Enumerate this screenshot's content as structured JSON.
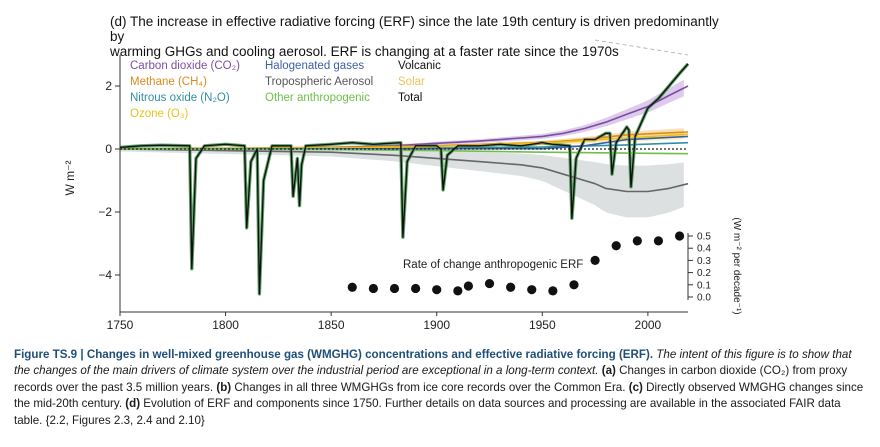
{
  "panel": {
    "title_line1": "(d) The increase in effective radiative forcing (ERF) since the late 19th century is driven predominantly by",
    "title_line2": "warming GHGs and cooling aerosol. ERF is changing at a faster rate since the 1970s"
  },
  "chart_data": {
    "type": "line",
    "ylabel": "W m⁻²",
    "xlim": [
      1750,
      2019
    ],
    "ylim": [
      -5,
      3
    ],
    "x_ticks": [
      1750,
      1800,
      1850,
      1900,
      1950,
      2000
    ],
    "y_ticks": [
      2,
      0,
      -2,
      -4
    ],
    "legend": {
      "placement": "top-left",
      "col1": [
        {
          "label": "Carbon dioxide (CO₂)",
          "color": "#7b4fa0"
        },
        {
          "label": "Methane (CH₄)",
          "color": "#e08a1e"
        },
        {
          "label": "Nitrous oxide (N₂O)",
          "color": "#2e8fa8"
        },
        {
          "label": "Ozone (O₃)",
          "color": "#e8c21a"
        }
      ],
      "col2": [
        {
          "label": "Halogenated gases",
          "color": "#3b5fa8"
        },
        {
          "label": "Tropospheric Aerosol",
          "color": "#555555"
        },
        {
          "label": "Other anthropogenic",
          "color": "#6fbf4a"
        }
      ],
      "col3": [
        {
          "label": "Volcanic",
          "color": "#111111"
        },
        {
          "label": "Solar",
          "color": "#f0c060"
        },
        {
          "label": "Total",
          "color": "#111111"
        }
      ]
    },
    "series": [
      {
        "name": "Carbon dioxide (CO₂)",
        "color": "#7b4fa0",
        "x": [
          1750,
          1800,
          1850,
          1880,
          1900,
          1920,
          1940,
          1950,
          1960,
          1970,
          1980,
          1990,
          2000,
          2010,
          2019
        ],
        "y": [
          0.0,
          0.02,
          0.05,
          0.1,
          0.18,
          0.25,
          0.35,
          0.4,
          0.5,
          0.65,
          0.85,
          1.1,
          1.35,
          1.7,
          2.0
        ]
      },
      {
        "name": "Methane (CH₄)",
        "color": "#e08a1e",
        "x": [
          1750,
          1850,
          1900,
          1950,
          1970,
          1990,
          2019
        ],
        "y": [
          0.0,
          0.04,
          0.1,
          0.2,
          0.3,
          0.45,
          0.54
        ]
      },
      {
        "name": "Nitrous oxide (N₂O)",
        "color": "#2e8fa8",
        "x": [
          1750,
          1850,
          1900,
          1950,
          1990,
          2019
        ],
        "y": [
          0.0,
          0.01,
          0.03,
          0.06,
          0.13,
          0.2
        ]
      },
      {
        "name": "Ozone (O₃)",
        "color": "#e8c21a",
        "x": [
          1750,
          1850,
          1900,
          1950,
          1990,
          2019
        ],
        "y": [
          0.0,
          0.03,
          0.08,
          0.18,
          0.35,
          0.47
        ]
      },
      {
        "name": "Halogenated gases",
        "color": "#3b5fa8",
        "x": [
          1750,
          1950,
          1970,
          1990,
          2019
        ],
        "y": [
          0.0,
          0.01,
          0.1,
          0.3,
          0.4
        ]
      },
      {
        "name": "Tropospheric Aerosol",
        "color": "#666666",
        "x": [
          1750,
          1850,
          1880,
          1900,
          1920,
          1940,
          1950,
          1960,
          1970,
          1975,
          1980,
          1990,
          2000,
          2010,
          2019
        ],
        "y": [
          0.0,
          -0.1,
          -0.2,
          -0.3,
          -0.4,
          -0.5,
          -0.6,
          -0.8,
          -1.0,
          -1.1,
          -1.25,
          -1.35,
          -1.35,
          -1.25,
          -1.1
        ]
      },
      {
        "name": "Other anthropogenic",
        "color": "#6fbf4a",
        "x": [
          1750,
          1850,
          1900,
          1950,
          2019
        ],
        "y": [
          0.0,
          -0.02,
          -0.05,
          -0.1,
          -0.15
        ]
      },
      {
        "name": "Total",
        "color": "#111111",
        "x": [
          1750,
          1760,
          1770,
          1783,
          1784,
          1786,
          1790,
          1800,
          1809,
          1810,
          1812,
          1815,
          1816,
          1818,
          1822,
          1831,
          1832,
          1834,
          1835,
          1836,
          1838,
          1850,
          1860,
          1870,
          1883,
          1884,
          1886,
          1890,
          1900,
          1902,
          1903,
          1905,
          1910,
          1920,
          1930,
          1940,
          1950,
          1955,
          1963,
          1964,
          1966,
          1970,
          1975,
          1980,
          1982,
          1983,
          1985,
          1990,
          1991,
          1992,
          1994,
          2000,
          2005,
          2010,
          2015,
          2019
        ],
        "y": [
          0.05,
          0.1,
          0.12,
          0.1,
          -3.8,
          -0.3,
          0.1,
          0.15,
          0.1,
          -2.5,
          -0.4,
          0.0,
          -4.6,
          -1.0,
          0.1,
          0.1,
          -1.5,
          -0.3,
          -1.8,
          -0.5,
          0.1,
          0.15,
          0.2,
          0.15,
          0.2,
          -2.8,
          -0.4,
          0.1,
          0.1,
          0.0,
          -1.3,
          -0.2,
          0.1,
          0.1,
          0.15,
          0.1,
          0.2,
          0.15,
          0.1,
          -2.2,
          -0.3,
          0.3,
          0.3,
          0.5,
          0.5,
          -0.8,
          0.2,
          0.7,
          0.6,
          -1.2,
          0.4,
          1.3,
          1.6,
          2.0,
          2.4,
          2.7
        ]
      }
    ],
    "rate_axis": {
      "label": "(W m⁻² per decade⁻¹)",
      "ticks": [
        "0.5",
        "0.4",
        "0.3",
        "0.2",
        "0.1",
        "0.0"
      ],
      "range": [
        0.0,
        0.5
      ]
    },
    "rate_series": {
      "label": "Rate of change anthropogenic ERF",
      "x": [
        1860,
        1870,
        1880,
        1890,
        1900,
        1910,
        1915,
        1925,
        1935,
        1945,
        1955,
        1965,
        1975,
        1985,
        1995,
        2005,
        2015
      ],
      "y": [
        0.08,
        0.07,
        0.07,
        0.07,
        0.06,
        0.05,
        0.09,
        0.11,
        0.08,
        0.06,
        0.05,
        0.1,
        0.3,
        0.42,
        0.46,
        0.46,
        0.5
      ]
    }
  },
  "caption": {
    "title": "Figure TS.9 | Changes in well-mixed greenhouse gas (WMGHG) concentrations and effective radiative forcing (ERF).",
    "intro": " The intent of this figure is to show that the changes of the main drivers of climate system over the industrial period are exceptional in a long-term context.",
    "a": " (a)",
    "a_text": " Changes in carbon dioxide (CO₂) from proxy records over the past 3.5 million years.",
    "b": " (b)",
    "b_text": " Changes in all three WMGHGs from ice core records over the Common Era.",
    "c": " (c)",
    "c_text": " Directly observed WMGHG changes since the mid-20th century.",
    "d": " (d)",
    "d_text": " Evolution of ERF and components since 1750. Further details on data sources and processing are available in the associated FAIR data table. {2.2, Figures 2.3, 2.4 and 2.10}"
  }
}
